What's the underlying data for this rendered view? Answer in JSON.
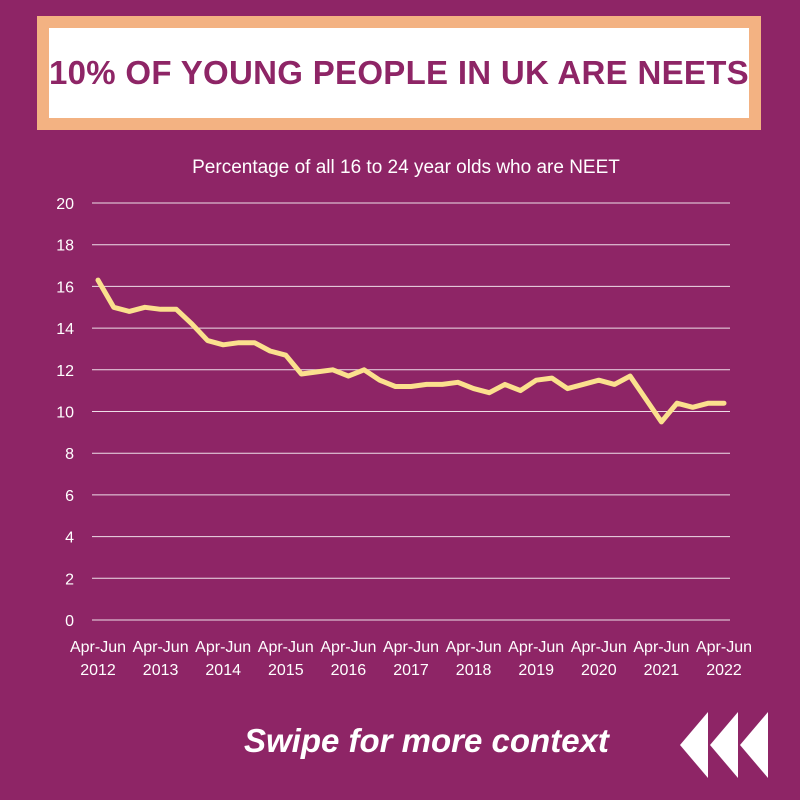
{
  "header": {
    "title": "10% OF YOUNG PEOPLE IN UK ARE NEETS"
  },
  "footer": {
    "cta": "Swipe for more context"
  },
  "icons": {
    "swipe": "triple-chevron-left-icon"
  },
  "colors": {
    "background": "#8e2566",
    "title_border": "#f3b282",
    "line": "#fbe08e",
    "grid": "#ffffff",
    "text": "#ffffff"
  },
  "chart_data": {
    "type": "line",
    "title": "Percentage of all 16 to 24 year olds who are NEET",
    "xlabel": "",
    "ylabel": "",
    "ylim": [
      0,
      20
    ],
    "yticks": [
      0,
      2,
      4,
      6,
      8,
      10,
      12,
      14,
      16,
      18,
      20
    ],
    "grid": true,
    "xtick_labels": [
      [
        "Apr-Jun",
        "2012"
      ],
      [
        "Apr-Jun",
        "2013"
      ],
      [
        "Apr-Jun",
        "2014"
      ],
      [
        "Apr-Jun",
        "2015"
      ],
      [
        "Apr-Jun",
        "2016"
      ],
      [
        "Apr-Jun",
        "2017"
      ],
      [
        "Apr-Jun",
        "2018"
      ],
      [
        "Apr-Jun",
        "2019"
      ],
      [
        "Apr-Jun",
        "2020"
      ],
      [
        "Apr-Jun",
        "2021"
      ],
      [
        "Apr-Jun",
        "2022"
      ]
    ],
    "series": [
      {
        "values": [
          16.3,
          15.0,
          14.8,
          15.0,
          14.9,
          14.9,
          14.2,
          13.4,
          13.2,
          13.3,
          13.3,
          12.9,
          12.7,
          11.8,
          11.9,
          12.0,
          11.7,
          12.0,
          11.5,
          11.2,
          11.2,
          11.3,
          11.3,
          11.4,
          11.1,
          10.9,
          11.3,
          11.0,
          11.5,
          11.6,
          11.1,
          11.3,
          11.5,
          11.3,
          11.7,
          10.6,
          9.5,
          10.4,
          10.2,
          10.4,
          10.4
        ]
      }
    ]
  }
}
